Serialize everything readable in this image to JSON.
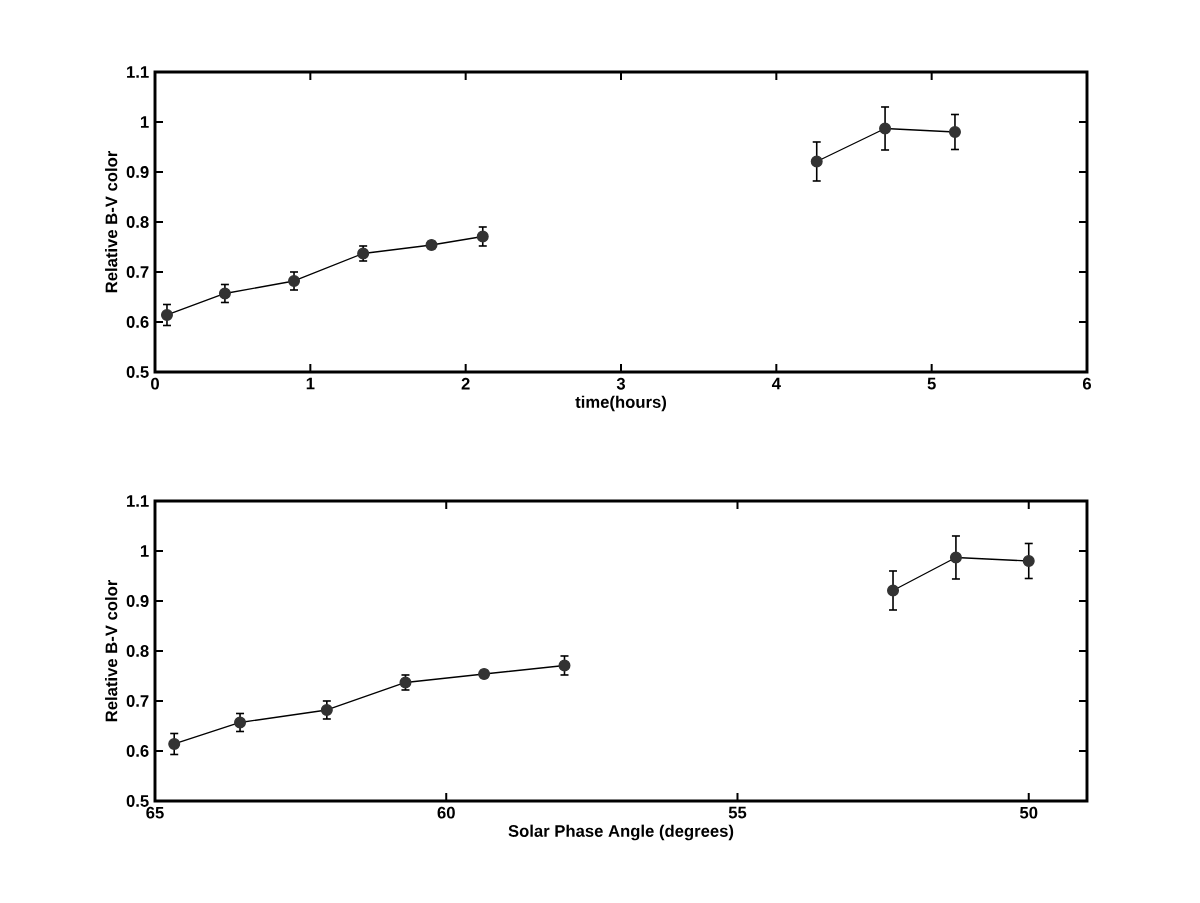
{
  "chart_data": [
    {
      "type": "line",
      "xlabel": "time(hours)",
      "ylabel": "Relative B-V color",
      "xlim": [
        0,
        6
      ],
      "ylim": [
        0.5,
        1.1
      ],
      "xticks": [
        0,
        1,
        2,
        3,
        4,
        5,
        6
      ],
      "yticks": [
        0.5,
        0.6,
        0.7,
        0.8,
        0.9,
        1,
        1.1
      ],
      "marker": "circle",
      "line_style": "solid",
      "series": [
        {
          "color": "#333333",
          "x": [
            0.077,
            0.45,
            0.895,
            1.34,
            1.78,
            2.11
          ],
          "values": [
            0.614,
            0.657,
            0.682,
            0.737,
            0.754,
            0.771
          ],
          "errors": [
            0.021,
            0.018,
            0.018,
            0.015,
            0.007,
            0.019
          ]
        },
        {
          "color": "#333333",
          "x": [
            4.26,
            4.7,
            5.15
          ],
          "values": [
            0.921,
            0.987,
            0.98
          ],
          "errors": [
            0.039,
            0.043,
            0.035
          ]
        }
      ]
    },
    {
      "type": "line",
      "xlabel": "Solar Phase Angle (degrees)",
      "ylabel": "Relative B-V color",
      "xlim": [
        65,
        49
      ],
      "ylim": [
        0.5,
        1.1
      ],
      "xticks": [
        65,
        60,
        55,
        50
      ],
      "yticks": [
        0.5,
        0.6,
        0.7,
        0.8,
        0.9,
        1,
        1.1
      ],
      "marker": "circle",
      "line_style": "solid",
      "series": [
        {
          "color": "#333333",
          "x": [
            64.67,
            63.54,
            62.05,
            60.7,
            59.35,
            57.97
          ],
          "values": [
            0.614,
            0.657,
            0.682,
            0.737,
            0.754,
            0.771
          ],
          "errors": [
            0.021,
            0.018,
            0.018,
            0.015,
            0.007,
            0.019
          ]
        },
        {
          "color": "#333333",
          "x": [
            52.33,
            51.25,
            50.0
          ],
          "values": [
            0.921,
            0.987,
            0.98
          ],
          "errors": [
            0.039,
            0.043,
            0.035
          ]
        }
      ]
    }
  ]
}
